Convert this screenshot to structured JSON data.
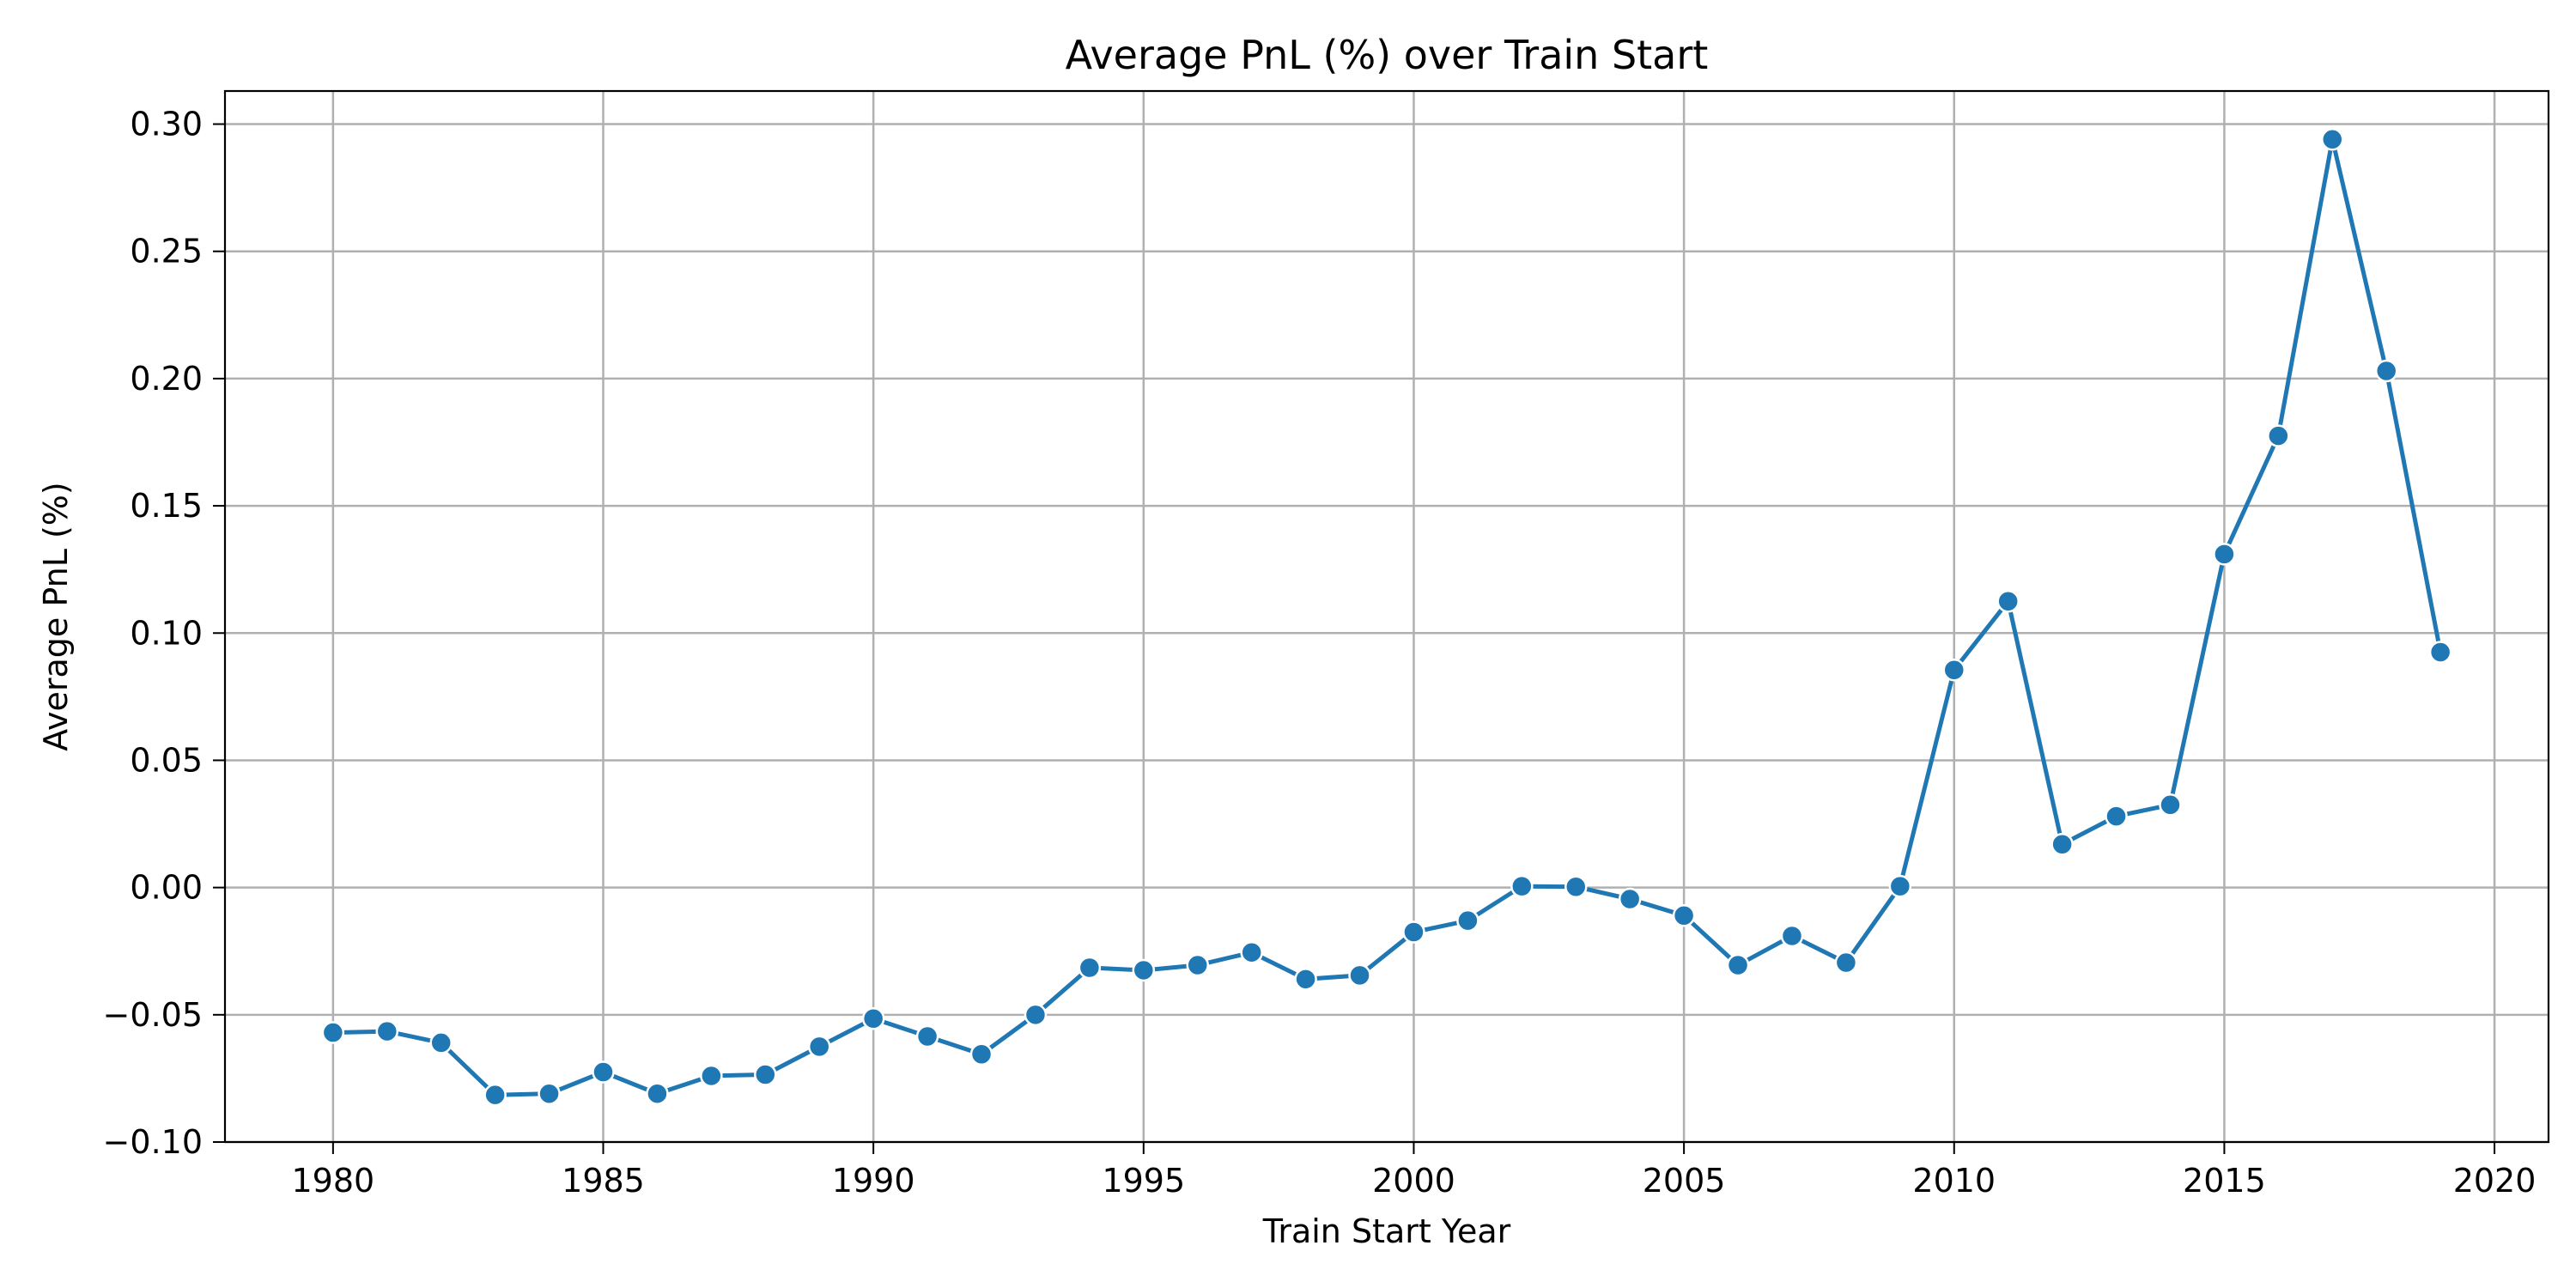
{
  "chart_data": {
    "type": "line",
    "title": "Average PnL (%) over Train Start",
    "xlabel": "Train Start Year",
    "ylabel": "Average PnL (%)",
    "xlim": [
      1978,
      2021
    ],
    "ylim": [
      -0.1,
      0.313
    ],
    "x_ticks": [
      1980,
      1985,
      1990,
      1995,
      2000,
      2005,
      2010,
      2015,
      2020
    ],
    "x_tick_labels": [
      "1980",
      "1985",
      "1990",
      "1995",
      "2000",
      "2005",
      "2010",
      "2015",
      "2020"
    ],
    "y_ticks": [
      -0.1,
      -0.05,
      0.0,
      0.05,
      0.1,
      0.15,
      0.2,
      0.25,
      0.3
    ],
    "y_tick_labels": [
      "−0.10",
      "−0.05",
      "0.00",
      "0.05",
      "0.10",
      "0.15",
      "0.20",
      "0.25",
      "0.30"
    ],
    "grid": true,
    "line_color": "#1f77b4",
    "grid_color": "#b0b0b0",
    "series": [
      {
        "x": [
          1980,
          1981,
          1982,
          1983,
          1984,
          1985,
          1986,
          1987,
          1988,
          1989,
          1990,
          1991,
          1992,
          1993,
          1994,
          1995,
          1996,
          1997,
          1998,
          1999,
          2000,
          2001,
          2002,
          2003,
          2004,
          2005,
          2006,
          2007,
          2008,
          2009,
          2010,
          2011,
          2012,
          2013,
          2014,
          2015,
          2016,
          2017,
          2018,
          2019
        ],
        "y": [
          -0.057,
          -0.0565,
          -0.061,
          -0.0815,
          -0.081,
          -0.0725,
          -0.081,
          -0.074,
          -0.0735,
          -0.0625,
          -0.0515,
          -0.0585,
          -0.0655,
          -0.05,
          -0.0315,
          -0.0325,
          -0.0305,
          -0.0255,
          -0.036,
          -0.0345,
          -0.0175,
          -0.013,
          0.0005,
          0.0003,
          -0.0045,
          -0.011,
          -0.0305,
          -0.019,
          -0.0295,
          0.0005,
          0.0855,
          0.1125,
          0.017,
          0.028,
          0.0325,
          0.131,
          0.1775,
          0.294,
          0.203,
          0.0925
        ]
      }
    ]
  }
}
